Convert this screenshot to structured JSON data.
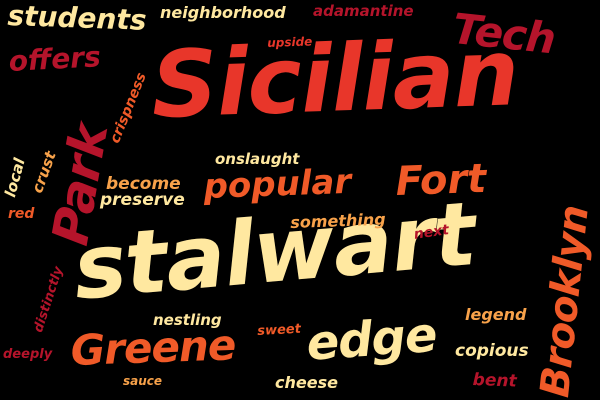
{
  "words": {
    "sicilian": "Sicilian",
    "stalwart": "stalwart",
    "park": "Park",
    "greene": "Greene",
    "edge": "edge",
    "popular": "popular",
    "fort": "Fort",
    "brooklyn": "Brooklyn",
    "tech": "Tech",
    "students": "students",
    "offers": "offers",
    "neighborhood": "neighborhood",
    "adamantine": "adamantine",
    "upside": "upside",
    "crispness": "crispness",
    "onslaught": "onslaught",
    "local": "local",
    "crust": "crust",
    "become": "become",
    "preserve": "preserve",
    "something": "something",
    "red": "red",
    "next": "next",
    "distinctly": "distinctly",
    "nestling": "nestling",
    "legend": "legend",
    "sweet": "sweet",
    "copious": "copious",
    "deeply": "deeply",
    "sauce": "sauce",
    "cheese": "cheese",
    "bent": "bent"
  },
  "colors": {
    "background": "#000000",
    "cream": "#FFE8A0",
    "orange": "#F05A28",
    "red": "#E8362A",
    "crimson": "#B5142B",
    "light_orange": "#F8A24A"
  }
}
